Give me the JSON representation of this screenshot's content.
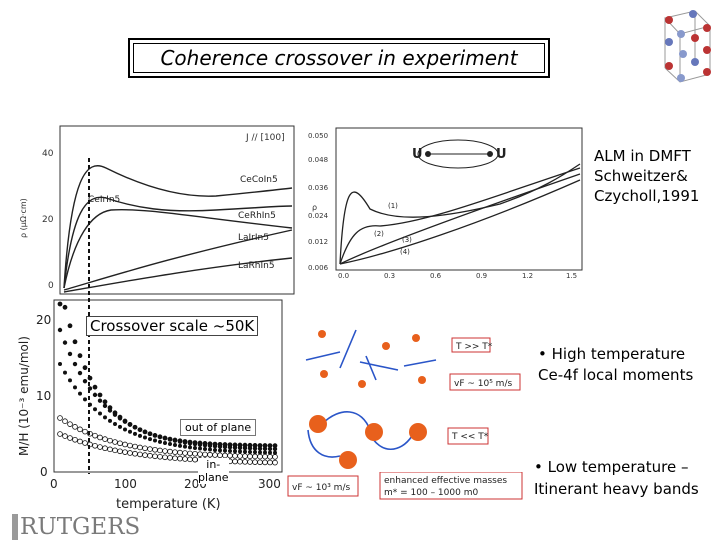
{
  "slide": {
    "title": "Coherence crossover in experiment",
    "logo": "RUTGERS"
  },
  "rho_plot": {
    "field_label": "J // [100]",
    "ylabel": "ρ (μΩ·cm)",
    "yticks": [
      "40",
      "20",
      "0"
    ],
    "curves": [
      "CeCoIn5",
      "CeIrIn5",
      "CeRhIn5",
      "LaIrIn5",
      "LaRhIn5"
    ]
  },
  "mh_plot": {
    "ylabel": "M/H (10⁻³ emu/mol)",
    "xlabel": "temperature (K)",
    "yticks": [
      "20",
      "10",
      "0"
    ],
    "xticks": [
      "0",
      "100",
      "200",
      "300"
    ],
    "out_of_plane_label": "out of plane",
    "in_plane_label": "in-\nplane",
    "crossover_label": "Crossover scale ~50K"
  },
  "alm_plot": {
    "yticks": [
      "0.050",
      "0.048",
      "0.036",
      "0.024",
      "0.012",
      "0.006"
    ],
    "xticks": [
      "0.0",
      "0.3",
      "0.6",
      "0.9",
      "1.2",
      "1.5"
    ],
    "ylabel": "ρ",
    "U_left": "U",
    "U_right": "U",
    "curve_labels": [
      "(1)",
      "(2)",
      "(3)",
      "(4)"
    ],
    "note": "ALM in DMFT\nSchweitzer&\nCzycholl,1991"
  },
  "cartoon": {
    "high_T_label": "T >> T*",
    "high_T_vf": "vF ~ 10⁵ m/s",
    "low_T_label": "T << T*",
    "low_T_vf": "vF ~ 10³ m/s",
    "mass_line1": "enhanced effective masses",
    "mass_line2": "m* = 100 – 1000 m0",
    "high_T_note": "• High temperature\nCe-4f local moments",
    "low_T_note": "• Low temperature –\nItinerant heavy bands"
  },
  "colors": {
    "curve": "#222222",
    "spin_ball": "#e8601c",
    "arrow": "#2a55c8",
    "logo_bar": "#9a9a9a"
  }
}
